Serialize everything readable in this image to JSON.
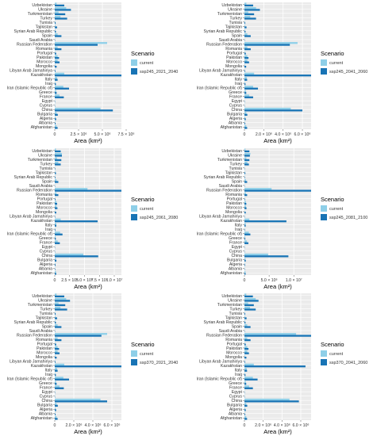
{
  "chart_data": [
    {
      "type": "bar",
      "orientation": "horizontal",
      "categories": [
        "Uzbekistan",
        "Ukraine",
        "Turkmenistan",
        "Turkey",
        "Tunisia",
        "Tajikistan",
        "Syrian Arab Republic",
        "Spain",
        "Saudi Arabia",
        "Russian Federation",
        "Romania",
        "Portugal",
        "Pakistan",
        "Morocco",
        "Mongolia",
        "Libyan Arab Jamahiriya",
        "Kazakhstan",
        "Italy",
        "Iraq",
        "Iran (Islamic Republic of)",
        "Greece",
        "France",
        "Egypt",
        "Cyprus",
        "China",
        "Bulgaria",
        "Algeria",
        "Albania",
        "Afghanistan"
      ],
      "series": [
        {
          "name": "current",
          "values": [
            200000,
            1200000,
            400000,
            600000,
            30000,
            60000,
            60000,
            300000,
            10000,
            5500000,
            300000,
            40000,
            300000,
            300000,
            60000,
            30000,
            1000000,
            250000,
            60000,
            900000,
            150000,
            500000,
            5000,
            10000,
            4800000,
            200000,
            80000,
            40000,
            200000
          ]
        },
        {
          "name": "ssp245_2021_2040",
          "values": [
            1000000,
            1700000,
            1100000,
            1300000,
            90000,
            250000,
            120000,
            700000,
            30000,
            4500000,
            700000,
            150000,
            450000,
            500000,
            200000,
            70000,
            7000000,
            300000,
            120000,
            1500000,
            200000,
            950000,
            30000,
            25000,
            6100000,
            320000,
            150000,
            80000,
            300000
          ]
        }
      ],
      "xticks": [
        "0",
        "2.5 × 10⁶",
        "5.0 × 10⁶",
        "7.5 × 10⁶"
      ],
      "xlim": [
        0,
        7000000
      ],
      "xlabel": "Area (km²)",
      "legend": {
        "title": "Scenario",
        "position": "right"
      }
    },
    {
      "type": "bar",
      "orientation": "horizontal",
      "categories": [
        "Uzbekistan",
        "Ukraine",
        "Turkmenistan",
        "Turkey",
        "Tunisia",
        "Tajikistan",
        "Syrian Arab Republic",
        "Spain",
        "Saudi Arabia",
        "Russian Federation",
        "Romania",
        "Portugal",
        "Pakistan",
        "Morocco",
        "Mongolia",
        "Libyan Arab Jamahiriya",
        "Kazakhstan",
        "Italy",
        "Iraq",
        "Iran (Islamic Republic of)",
        "Greece",
        "France",
        "Egypt",
        "Cyprus",
        "China",
        "Bulgaria",
        "Algeria",
        "Albania",
        "Afghanistan"
      ],
      "series": [
        {
          "name": "current",
          "values": [
            200000,
            1200000,
            400000,
            600000,
            30000,
            60000,
            60000,
            300000,
            10000,
            5500000,
            300000,
            40000,
            300000,
            300000,
            60000,
            30000,
            1000000,
            250000,
            60000,
            900000,
            150000,
            500000,
            5000,
            10000,
            4800000,
            200000,
            80000,
            40000,
            200000
          ]
        },
        {
          "name": "ssp245_2041_2060",
          "values": [
            900000,
            1600000,
            1000000,
            1200000,
            80000,
            220000,
            110000,
            650000,
            30000,
            4700000,
            650000,
            140000,
            420000,
            480000,
            180000,
            65000,
            6900000,
            280000,
            110000,
            1400000,
            190000,
            900000,
            28000,
            22000,
            6000000,
            300000,
            140000,
            75000,
            280000
          ]
        }
      ],
      "xticks": [
        "0",
        "2.0 × 10⁶",
        "4.0 × 10⁶",
        "6.0 × 10⁶"
      ],
      "xlim": [
        0,
        6900000
      ],
      "xlabel": "Area (km²)",
      "legend": {
        "title": "Scenario",
        "position": "right"
      }
    },
    {
      "type": "bar",
      "orientation": "horizontal",
      "categories": [
        "Uzbekistan",
        "Ukraine",
        "Turkmenistan",
        "Turkey",
        "Tunisia",
        "Tajikistan",
        "Syrian Arab Republic",
        "Spain",
        "Saudi Arabia",
        "Russian Federation",
        "Romania",
        "Portugal",
        "Pakistan",
        "Morocco",
        "Mongolia",
        "Libyan Arab Jamahiriya",
        "Kazakhstan",
        "Italy",
        "Iraq",
        "Iran (Islamic Republic of)",
        "Greece",
        "France",
        "Egypt",
        "Cyprus",
        "China",
        "Bulgaria",
        "Algeria",
        "Albania",
        "Afghanistan"
      ],
      "series": [
        {
          "name": "current",
          "values": [
            200000,
            1200000,
            400000,
            600000,
            30000,
            60000,
            60000,
            300000,
            10000,
            5500000,
            300000,
            40000,
            300000,
            300000,
            60000,
            30000,
            1000000,
            250000,
            60000,
            900000,
            150000,
            500000,
            5000,
            10000,
            4800000,
            200000,
            80000,
            40000,
            200000
          ]
        },
        {
          "name": "ssp245_2061_2080",
          "values": [
            1000000,
            1200000,
            1100000,
            1000000,
            70000,
            200000,
            100000,
            600000,
            25000,
            11200000,
            600000,
            120000,
            400000,
            450000,
            250000,
            60000,
            7200000,
            270000,
            100000,
            1300000,
            180000,
            850000,
            25000,
            20000,
            7300000,
            280000,
            130000,
            70000,
            250000
          ]
        }
      ],
      "xticks": [
        "0",
        "2.5 × 10⁶",
        "5.0 × 10⁶",
        "7.5 × 10⁶",
        "1.0 × 10⁷"
      ],
      "xlim": [
        0,
        11200000
      ],
      "xlabel": "Area (km²)",
      "legend": {
        "title": "Scenario",
        "position": "right"
      }
    },
    {
      "type": "bar",
      "orientation": "horizontal",
      "categories": [
        "Uzbekistan",
        "Ukraine",
        "Turkmenistan",
        "Turkey",
        "Tunisia",
        "Tajikistan",
        "Syrian Arab Republic",
        "Spain",
        "Saudi Arabia",
        "Russian Federation",
        "Romania",
        "Portugal",
        "Pakistan",
        "Morocco",
        "Mongolia",
        "Libyan Arab Jamahiriya",
        "Kazakhstan",
        "Italy",
        "Iraq",
        "Iran (Islamic Republic of)",
        "Greece",
        "France",
        "Egypt",
        "Cyprus",
        "China",
        "Bulgaria",
        "Algeria",
        "Albania",
        "Afghanistan"
      ],
      "series": [
        {
          "name": "current",
          "values": [
            200000,
            1200000,
            400000,
            600000,
            30000,
            60000,
            60000,
            300000,
            10000,
            5500000,
            300000,
            40000,
            300000,
            300000,
            60000,
            30000,
            1000000,
            250000,
            60000,
            900000,
            150000,
            500000,
            5000,
            10000,
            4800000,
            200000,
            80000,
            40000,
            200000
          ]
        },
        {
          "name": "ssp245_2081_2100",
          "values": [
            1000000,
            1100000,
            1000000,
            900000,
            60000,
            180000,
            90000,
            550000,
            20000,
            13500000,
            550000,
            110000,
            380000,
            420000,
            260000,
            55000,
            8500000,
            250000,
            90000,
            1200000,
            170000,
            800000,
            20000,
            18000,
            8900000,
            260000,
            120000,
            60000,
            230000
          ]
        }
      ],
      "xticks": [
        "0",
        "5.0 × 10⁶",
        "1.0 × 10⁷"
      ],
      "xlim": [
        0,
        13500000
      ],
      "xlabel": "Area (km²)",
      "legend": {
        "title": "Scenario",
        "position": "right"
      }
    },
    {
      "type": "bar",
      "orientation": "horizontal",
      "categories": [
        "Uzbekistan",
        "Ukraine",
        "Turkmenistan",
        "Turkey",
        "Tunisia",
        "Tajikistan",
        "Syrian Arab Republic",
        "Spain",
        "Saudi Arabia",
        "Russian Federation",
        "Romania",
        "Portugal",
        "Pakistan",
        "Morocco",
        "Mongolia",
        "Libyan Arab Jamahiriya",
        "Kazakhstan",
        "Italy",
        "Iraq",
        "Iran (Islamic Republic of)",
        "Greece",
        "France",
        "Egypt",
        "Cyprus",
        "China",
        "Bulgaria",
        "Algeria",
        "Albania",
        "Afghanistan"
      ],
      "series": [
        {
          "name": "current",
          "values": [
            200000,
            1200000,
            400000,
            600000,
            30000,
            60000,
            60000,
            300000,
            10000,
            5500000,
            300000,
            40000,
            300000,
            300000,
            60000,
            30000,
            1000000,
            250000,
            60000,
            900000,
            150000,
            500000,
            5000,
            10000,
            4800000,
            200000,
            80000,
            40000,
            200000
          ]
        },
        {
          "name": "ssp370_2021_2040",
          "values": [
            1000000,
            1600000,
            1100000,
            1300000,
            90000,
            250000,
            120000,
            700000,
            30000,
            4900000,
            700000,
            150000,
            450000,
            500000,
            200000,
            70000,
            7000000,
            300000,
            120000,
            1500000,
            200000,
            950000,
            30000,
            25000,
            5500000,
            320000,
            150000,
            80000,
            300000
          ]
        }
      ],
      "xticks": [
        "0",
        "2.0 × 10⁶",
        "4.0 × 10⁶",
        "6.0 × 10⁶"
      ],
      "xlim": [
        0,
        7000000
      ],
      "xlabel": "Area (km²)",
      "legend": {
        "title": "Scenario",
        "position": "right"
      }
    },
    {
      "type": "bar",
      "orientation": "horizontal",
      "categories": [
        "Uzbekistan",
        "Ukraine",
        "Turkmenistan",
        "Turkey",
        "Tunisia",
        "Tajikistan",
        "Syrian Arab Republic",
        "Spain",
        "Saudi Arabia",
        "Russian Federation",
        "Romania",
        "Portugal",
        "Pakistan",
        "Morocco",
        "Mongolia",
        "Libyan Arab Jamahiriya",
        "Kazakhstan",
        "Italy",
        "Iraq",
        "Iran (Islamic Republic of)",
        "Greece",
        "France",
        "Egypt",
        "Cyprus",
        "China",
        "Bulgaria",
        "Algeria",
        "Albania",
        "Afghanistan"
      ],
      "series": [
        {
          "name": "current",
          "values": [
            200000,
            1200000,
            400000,
            600000,
            30000,
            60000,
            60000,
            300000,
            10000,
            5500000,
            300000,
            40000,
            300000,
            300000,
            60000,
            30000,
            1000000,
            250000,
            60000,
            900000,
            150000,
            500000,
            5000,
            10000,
            4800000,
            200000,
            80000,
            40000,
            200000
          ]
        },
        {
          "name": "ssp370_2041_2060",
          "values": [
            900000,
            1500000,
            1000000,
            1200000,
            80000,
            230000,
            110000,
            650000,
            30000,
            7100000,
            650000,
            140000,
            430000,
            480000,
            210000,
            65000,
            6500000,
            280000,
            110000,
            1400000,
            190000,
            900000,
            28000,
            22000,
            5800000,
            300000,
            140000,
            75000,
            280000
          ]
        }
      ],
      "xticks": [
        "0",
        "2.0 × 10⁶",
        "4.0 × 10⁶",
        "6.0 × 10⁶"
      ],
      "xlim": [
        0,
        7100000
      ],
      "xlabel": "Area (km²)",
      "legend": {
        "title": "Scenario",
        "position": "right"
      }
    }
  ],
  "colors": {
    "current": "#8ecfe8",
    "scenario": "#1874b5",
    "panel_bg": "#ebebeb",
    "grid": "#ffffff",
    "text": "#333333"
  }
}
